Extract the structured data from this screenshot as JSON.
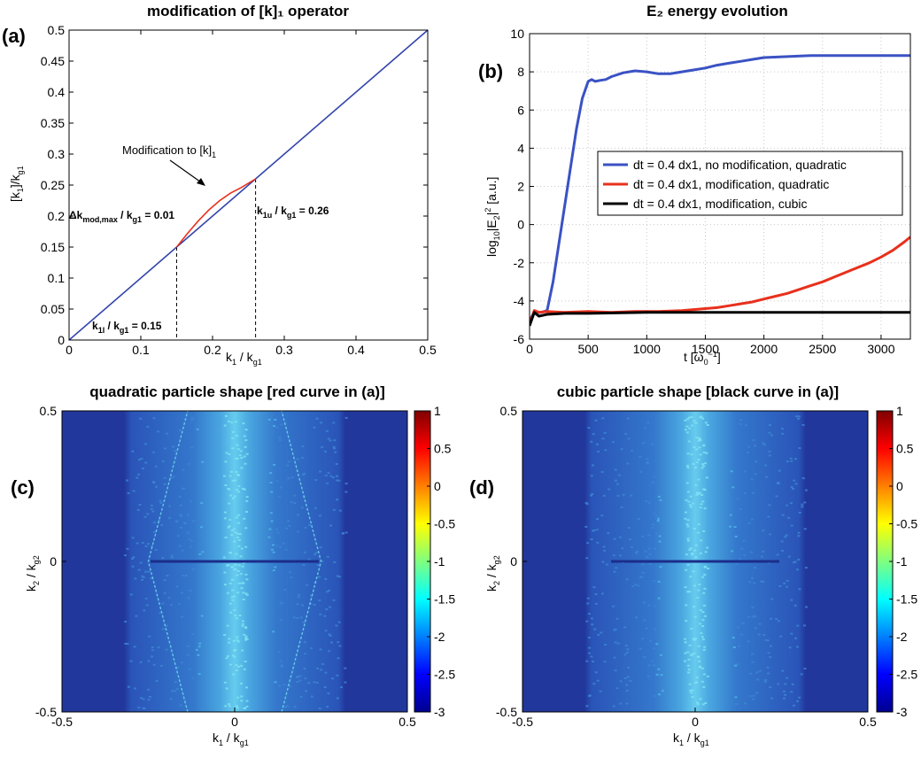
{
  "panels": {
    "a": {
      "label": "(a)",
      "title": "modification of [k]₁ operator"
    },
    "b": {
      "label": "(b)",
      "title": "E₂ energy evolution"
    },
    "c": {
      "label": "(c)",
      "title": "quadratic particle shape [red curve in (a)]"
    },
    "d": {
      "label": "(d)",
      "title": "cubic particle shape [black curve in (a)]"
    }
  },
  "annotations": {
    "modification": "Modification to [k]",
    "modification_sub": "1",
    "dk_main": "Δk",
    "dk_sub": "mod,max",
    "dk_mid": " / k",
    "dk_sub2": "g1",
    "dk_end": " = 0.01",
    "k1u_main": "k",
    "k1u_sub": "1u",
    "k1u_mid": " / k",
    "k1u_sub2": "g1",
    "k1u_end": " = 0.26",
    "k1l_main": "k",
    "k1l_sub": "1l",
    "k1l_mid": " / k",
    "k1l_sub2": "g1",
    "k1l_end": " = 0.15"
  },
  "axis_text": {
    "a_x": {
      "m1": "k",
      "s1": "1",
      "m2": " / k",
      "s2": "g1"
    },
    "a_y": {
      "m1": "[k",
      "s1": "1",
      "m2": "]/k",
      "s2": "g1"
    },
    "b_x": {
      "m1": "t [ω",
      "s1": "0",
      "sup": "−1",
      "m2": "]"
    },
    "b_y": {
      "m1": "log",
      "s1": "10",
      "m2": "|E",
      "s2": "2",
      "m3": "|",
      "sup": "2",
      "m4": " [a.u.]"
    },
    "cd_x": {
      "m1": "k",
      "s1": "1",
      "m2": " / k",
      "s2": "g1"
    },
    "cd_y": {
      "m1": "k",
      "s1": "2",
      "m2": " / k",
      "s2": "g2"
    }
  },
  "chart_data": [
    {
      "type": "line",
      "panel": "a",
      "title": "modification of [k]₁ operator",
      "xlabel": "k1 / kg1",
      "ylabel": "[k1]/kg1",
      "xlim": [
        0,
        0.5
      ],
      "ylim": [
        0,
        0.5
      ],
      "xticks": [
        "0",
        "0.1",
        "0.2",
        "0.3",
        "0.4",
        "0.5"
      ],
      "yticks": [
        "0",
        "0.05",
        "0.1",
        "0.15",
        "0.2",
        "0.25",
        "0.3",
        "0.35",
        "0.4",
        "0.45",
        "0.5"
      ],
      "series": [
        {
          "color": "#3344aa",
          "x": [
            0,
            0.5
          ],
          "y": [
            0,
            0.5
          ]
        },
        {
          "color": "#e8301c",
          "x": [
            0.15,
            0.165,
            0.18,
            0.195,
            0.21,
            0.225,
            0.24,
            0.26
          ],
          "y": [
            0.15,
            0.172,
            0.192,
            0.21,
            0.225,
            0.237,
            0.246,
            0.26
          ]
        }
      ],
      "markers": [
        0.15,
        0.26
      ]
    },
    {
      "type": "line",
      "panel": "b",
      "title": "E₂ energy evolution",
      "xlim": [
        0,
        3250
      ],
      "ylim": [
        -6,
        10
      ],
      "xticks": [
        "0",
        "500",
        "1000",
        "1500",
        "2000",
        "2500",
        "3000"
      ],
      "yticks": [
        "-6",
        "-4",
        "-2",
        "0",
        "2",
        "4",
        "6",
        "8",
        "10"
      ],
      "grid": true,
      "legend_position": "center-right",
      "series": [
        {
          "name": "dt = 0.4 dx1, no modification, quadratic",
          "color": "#3a52c4",
          "x": [
            0,
            30,
            60,
            100,
            150,
            200,
            250,
            300,
            350,
            400,
            450,
            500,
            530,
            560,
            600,
            650,
            700,
            800,
            900,
            1000,
            1100,
            1200,
            1300,
            1400,
            1500,
            1600,
            1700,
            1800,
            1900,
            2000,
            2200,
            2400,
            2600,
            2800,
            3000,
            3250
          ],
          "y": [
            -5.0,
            -4.7,
            -4.6,
            -4.6,
            -4.5,
            -3.0,
            -1.0,
            1.0,
            3.0,
            5.0,
            6.6,
            7.5,
            7.6,
            7.5,
            7.55,
            7.6,
            7.75,
            7.95,
            8.05,
            8.0,
            7.9,
            7.9,
            8.0,
            8.1,
            8.2,
            8.35,
            8.45,
            8.55,
            8.65,
            8.75,
            8.8,
            8.85,
            8.85,
            8.85,
            8.85,
            8.85
          ]
        },
        {
          "name": "dt = 0.4 dx1, modification, quadratic",
          "color": "#e8301c",
          "x": [
            0,
            40,
            80,
            150,
            300,
            500,
            700,
            900,
            1100,
            1300,
            1500,
            1600,
            1700,
            1800,
            1900,
            2000,
            2100,
            2200,
            2300,
            2400,
            2500,
            2600,
            2700,
            2800,
            2900,
            3000,
            3100,
            3200,
            3250
          ],
          "y": [
            -5.2,
            -4.5,
            -4.6,
            -4.55,
            -4.6,
            -4.55,
            -4.6,
            -4.55,
            -4.55,
            -4.5,
            -4.4,
            -4.35,
            -4.25,
            -4.15,
            -4.05,
            -3.9,
            -3.75,
            -3.6,
            -3.4,
            -3.2,
            -3.0,
            -2.75,
            -2.5,
            -2.25,
            -2.0,
            -1.7,
            -1.35,
            -0.9,
            -0.65
          ]
        },
        {
          "name": "dt = 0.4 dx1, modification, cubic",
          "color": "#000000",
          "x": [
            0,
            40,
            80,
            150,
            300,
            500,
            1000,
            1500,
            2000,
            2500,
            3000,
            3250
          ],
          "y": [
            -5.3,
            -4.6,
            -4.8,
            -4.7,
            -4.65,
            -4.65,
            -4.6,
            -4.6,
            -4.6,
            -4.6,
            -4.6,
            -4.6
          ]
        }
      ]
    },
    {
      "type": "heatmap",
      "panel": "c",
      "title": "quadratic particle shape [red curve in (a)]",
      "xlim": [
        -0.5,
        0.5
      ],
      "ylim": [
        -0.5,
        0.5
      ],
      "xticks": [
        "-0.5",
        "0",
        "0.5"
      ],
      "yticks": [
        "-0.5",
        "0",
        "0.5"
      ],
      "clim": [
        -3,
        1
      ],
      "colorbar_ticks": [
        "1",
        "0.5",
        "0",
        "-0.5",
        "-1",
        "-1.5",
        "-2",
        "-2.5",
        "-3"
      ]
    },
    {
      "type": "heatmap",
      "panel": "d",
      "title": "cubic particle shape [black curve in (a)]",
      "xlim": [
        -0.5,
        0.5
      ],
      "ylim": [
        -0.5,
        0.5
      ],
      "xticks": [
        "-0.5",
        "0",
        "0.5"
      ],
      "yticks": [
        "-0.5",
        "0",
        "0.5"
      ],
      "clim": [
        -3,
        1
      ],
      "colorbar_ticks": [
        "1",
        "0.5",
        "0",
        "-0.5",
        "-1",
        "-1.5",
        "-2",
        "-2.5",
        "-3"
      ]
    }
  ]
}
